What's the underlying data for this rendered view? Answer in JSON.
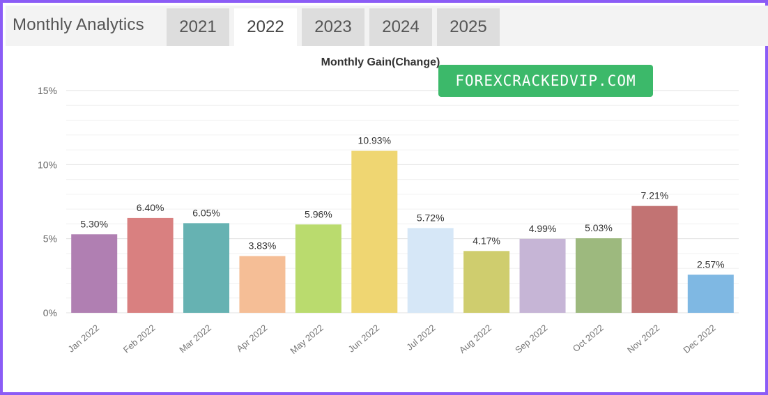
{
  "header": {
    "title": "Monthly Analytics",
    "tabs": [
      {
        "label": "2021",
        "active": false
      },
      {
        "label": "2022",
        "active": true
      },
      {
        "label": "2023",
        "active": false
      },
      {
        "label": "2024",
        "active": false
      },
      {
        "label": "2025",
        "active": false
      }
    ]
  },
  "watermark": {
    "text": "FOREXCRACKEDVIP.COM",
    "color": "#3cb96a"
  },
  "chart_data": {
    "type": "bar",
    "title": "Monthly Gain(Change)",
    "xlabel": "",
    "ylabel": "",
    "ylim": [
      0,
      15
    ],
    "yticks": [
      0,
      5,
      10,
      15
    ],
    "ytick_labels": [
      "0%",
      "5%",
      "10%",
      "15%"
    ],
    "grid": true,
    "categories": [
      "Jan 2022",
      "Feb 2022",
      "Mar 2022",
      "Apr 2022",
      "May 2022",
      "Jun 2022",
      "Jul 2022",
      "Aug 2022",
      "Sep 2022",
      "Oct 2022",
      "Nov 2022",
      "Dec 2022"
    ],
    "values": [
      5.3,
      6.4,
      6.05,
      3.83,
      5.96,
      10.93,
      5.72,
      4.17,
      4.99,
      5.03,
      7.21,
      2.57
    ],
    "value_labels": [
      "5.30%",
      "6.40%",
      "6.05%",
      "3.83%",
      "5.96%",
      "10.93%",
      "5.72%",
      "4.17%",
      "4.99%",
      "5.03%",
      "7.21%",
      "2.57%"
    ],
    "colors": [
      "#b07fb2",
      "#d98080",
      "#66b2b2",
      "#f5be96",
      "#badb6e",
      "#efd672",
      "#d6e7f7",
      "#cfcd6e",
      "#c6b5d6",
      "#9db97e",
      "#c27373",
      "#7fb8e3"
    ]
  }
}
